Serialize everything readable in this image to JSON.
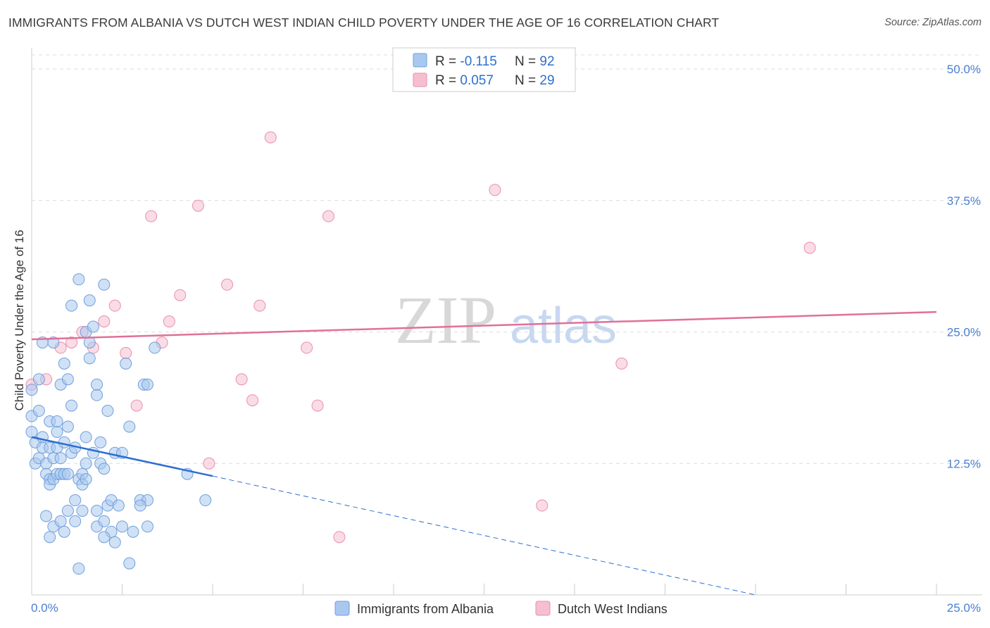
{
  "title": "IMMIGRANTS FROM ALBANIA VS DUTCH WEST INDIAN CHILD POVERTY UNDER THE AGE OF 16 CORRELATION CHART",
  "source": "Source: ZipAtlas.com",
  "watermark": {
    "zip": "ZIP",
    "atlas": "atlas"
  },
  "colors": {
    "blue_fill": "#a9c8ef",
    "blue_stroke": "#6f9fdc",
    "blue_line": "#2d6fd0",
    "pink_fill": "#f5bfd0",
    "pink_stroke": "#e98fb0",
    "pink_line": "#e0709a",
    "tick_text": "#4a7fd0",
    "grid": "#dcdcdc"
  },
  "legend": {
    "rows": [
      {
        "r_label": "R = ",
        "r_value": "-0.115",
        "n_label": "N = ",
        "n_value": "92"
      },
      {
        "r_label": "R = ",
        "r_value": "0.057",
        "n_label": "N = ",
        "n_value": "29"
      }
    ]
  },
  "bottom_legend": [
    "Immigrants from Albania",
    "Dutch West Indians"
  ],
  "chart_data": {
    "type": "scatter",
    "title": "IMMIGRANTS FROM ALBANIA VS DUTCH WEST INDIAN CHILD POVERTY UNDER THE AGE OF 16 CORRELATION CHART",
    "xlabel": "",
    "ylabel": "Child Poverty Under the Age of 16",
    "xlim": [
      0,
      25
    ],
    "ylim": [
      0,
      50
    ],
    "x_tick_labels": [
      "0.0%",
      "25.0%"
    ],
    "y_ticks": [
      12.5,
      25.0,
      37.5,
      50.0
    ],
    "y_tick_labels": [
      "12.5%",
      "25.0%",
      "37.5%",
      "50.0%"
    ],
    "grid": true,
    "legend_position": "top-center",
    "series": [
      {
        "name": "Immigrants from Albania",
        "points": [
          [
            0.0,
            19.5
          ],
          [
            0.0,
            17.0
          ],
          [
            0.0,
            15.5
          ],
          [
            0.1,
            14.5
          ],
          [
            0.1,
            12.5
          ],
          [
            0.2,
            13.0
          ],
          [
            0.2,
            20.5
          ],
          [
            0.2,
            17.5
          ],
          [
            0.3,
            24.0
          ],
          [
            0.3,
            15.0
          ],
          [
            0.3,
            14.0
          ],
          [
            0.4,
            12.5
          ],
          [
            0.4,
            11.5
          ],
          [
            0.4,
            7.5
          ],
          [
            0.5,
            16.5
          ],
          [
            0.5,
            11.0
          ],
          [
            0.5,
            10.5
          ],
          [
            0.5,
            5.5
          ],
          [
            0.5,
            14.0
          ],
          [
            0.6,
            13.0
          ],
          [
            0.6,
            11.0
          ],
          [
            0.6,
            6.5
          ],
          [
            0.6,
            24.0
          ],
          [
            0.7,
            15.5
          ],
          [
            0.7,
            11.5
          ],
          [
            0.7,
            16.5
          ],
          [
            0.7,
            14.0
          ],
          [
            0.8,
            20.0
          ],
          [
            0.8,
            13.0
          ],
          [
            0.8,
            11.5
          ],
          [
            0.8,
            7.0
          ],
          [
            0.9,
            22.0
          ],
          [
            0.9,
            11.5
          ],
          [
            0.9,
            14.5
          ],
          [
            1.0,
            20.5
          ],
          [
            1.0,
            11.5
          ],
          [
            1.0,
            8.0
          ],
          [
            1.0,
            16.0
          ],
          [
            1.1,
            18.0
          ],
          [
            1.1,
            13.5
          ],
          [
            1.1,
            27.5
          ],
          [
            1.2,
            9.0
          ],
          [
            1.2,
            7.0
          ],
          [
            1.3,
            30.0
          ],
          [
            1.3,
            11.0
          ],
          [
            1.3,
            2.5
          ],
          [
            1.4,
            11.5
          ],
          [
            1.4,
            10.5
          ],
          [
            1.4,
            8.0
          ],
          [
            1.5,
            25.0
          ],
          [
            1.5,
            15.0
          ],
          [
            1.5,
            11.0
          ],
          [
            1.5,
            12.5
          ],
          [
            1.6,
            24.0
          ],
          [
            1.6,
            22.5
          ],
          [
            1.6,
            28.0
          ],
          [
            1.7,
            25.5
          ],
          [
            1.7,
            13.5
          ],
          [
            1.8,
            19.0
          ],
          [
            1.8,
            20.0
          ],
          [
            1.8,
            6.5
          ],
          [
            1.9,
            14.5
          ],
          [
            1.9,
            12.5
          ],
          [
            2.0,
            29.5
          ],
          [
            2.0,
            12.0
          ],
          [
            2.0,
            7.0
          ],
          [
            2.1,
            17.5
          ],
          [
            2.1,
            8.5
          ],
          [
            2.2,
            9.0
          ],
          [
            2.2,
            6.0
          ],
          [
            2.3,
            13.5
          ],
          [
            2.3,
            5.0
          ],
          [
            2.4,
            8.5
          ],
          [
            2.5,
            13.5
          ],
          [
            2.5,
            6.5
          ],
          [
            2.6,
            22.0
          ],
          [
            2.7,
            16.0
          ],
          [
            2.7,
            3.0
          ],
          [
            2.8,
            6.0
          ],
          [
            3.0,
            9.0
          ],
          [
            3.1,
            20.0
          ],
          [
            3.2,
            9.0
          ],
          [
            3.2,
            20.0
          ],
          [
            3.2,
            6.5
          ],
          [
            3.4,
            23.5
          ],
          [
            3.0,
            8.5
          ],
          [
            2.0,
            5.5
          ],
          [
            0.9,
            6.0
          ],
          [
            1.8,
            8.0
          ],
          [
            4.3,
            11.5
          ],
          [
            4.8,
            9.0
          ],
          [
            1.2,
            14.0
          ]
        ],
        "trend": {
          "x": [
            0.0,
            5.0
          ],
          "y": [
            15.0,
            11.3
          ]
        },
        "trend_extension": {
          "x": [
            5.0,
            20.0
          ],
          "y": [
            11.3,
            0.0
          ]
        }
      },
      {
        "name": "Dutch West Indians",
        "points": [
          [
            0.0,
            20.0
          ],
          [
            0.4,
            20.5
          ],
          [
            0.8,
            23.5
          ],
          [
            1.1,
            24.0
          ],
          [
            1.4,
            25.0
          ],
          [
            1.7,
            23.5
          ],
          [
            2.0,
            26.0
          ],
          [
            2.3,
            27.5
          ],
          [
            2.6,
            23.0
          ],
          [
            2.9,
            18.0
          ],
          [
            3.3,
            36.0
          ],
          [
            3.6,
            24.0
          ],
          [
            3.8,
            26.0
          ],
          [
            4.1,
            28.5
          ],
          [
            4.6,
            37.0
          ],
          [
            4.9,
            12.5
          ],
          [
            5.4,
            29.5
          ],
          [
            5.8,
            20.5
          ],
          [
            6.1,
            18.5
          ],
          [
            6.3,
            27.5
          ],
          [
            6.6,
            43.5
          ],
          [
            7.6,
            23.5
          ],
          [
            7.9,
            18.0
          ],
          [
            8.2,
            36.0
          ],
          [
            8.5,
            5.5
          ],
          [
            12.8,
            38.5
          ],
          [
            14.1,
            8.5
          ],
          [
            16.3,
            22.0
          ],
          [
            21.5,
            33.0
          ]
        ],
        "trend": {
          "x": [
            0.0,
            25.0
          ],
          "y": [
            24.3,
            26.9
          ]
        }
      }
    ]
  }
}
